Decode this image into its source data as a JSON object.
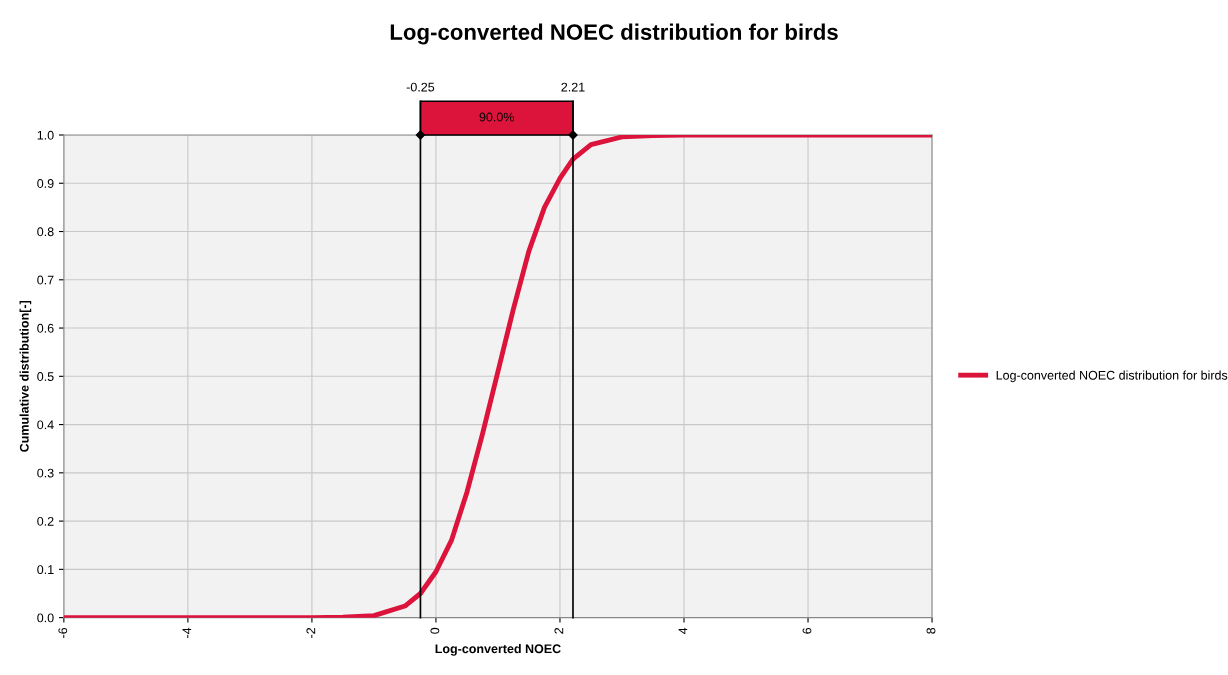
{
  "chart_data": {
    "type": "line",
    "title": "Log-converted NOEC distribution for birds",
    "xlabel": "Log-converted NOEC",
    "ylabel": "Cumulative distribution[-]",
    "x": [
      -6,
      -2,
      -1.5,
      -1,
      -0.5,
      -0.25,
      0,
      0.25,
      0.5,
      0.75,
      1,
      1.25,
      1.5,
      1.75,
      2,
      2.21,
      2.5,
      3,
      3.5,
      4,
      8
    ],
    "series": [
      {
        "name": "Log-converted NOEC distribution for birds",
        "color": "#dc143c",
        "values": [
          0,
          0,
          0.001,
          0.004,
          0.024,
          0.05,
          0.095,
          0.16,
          0.26,
          0.38,
          0.51,
          0.64,
          0.76,
          0.85,
          0.91,
          0.95,
          0.98,
          0.996,
          0.999,
          1.0,
          1.0
        ]
      }
    ],
    "xlim": [
      -6,
      8
    ],
    "xticks": [
      -6,
      -4,
      -2,
      0,
      2,
      4,
      6,
      8
    ],
    "ylim": [
      0,
      1
    ],
    "yticks": [
      {
        "value": 0,
        "label": "0.0"
      },
      {
        "value": 0.1,
        "label": "0.1"
      },
      {
        "value": 0.2,
        "label": "0.2"
      },
      {
        "value": 0.3,
        "label": "0.3"
      },
      {
        "value": 0.4,
        "label": "0.4"
      },
      {
        "value": 0.5,
        "label": "0.5"
      },
      {
        "value": 0.6,
        "label": "0.6"
      },
      {
        "value": 0.7,
        "label": "0.7"
      },
      {
        "value": 0.8,
        "label": "0.8"
      },
      {
        "value": 0.9,
        "label": "0.9"
      },
      {
        "value": 1.0,
        "label": "1.0"
      }
    ],
    "ref_lines": [
      {
        "axis": "x",
        "value": -0.25,
        "label": "-0.25",
        "color": "#000000"
      },
      {
        "axis": "x",
        "value": 2.21,
        "label": "2.21",
        "color": "#000000"
      }
    ],
    "annotations": [
      "90.0%"
    ],
    "grid": true,
    "legend": "right",
    "marker": "none",
    "line_style": "solid"
  }
}
